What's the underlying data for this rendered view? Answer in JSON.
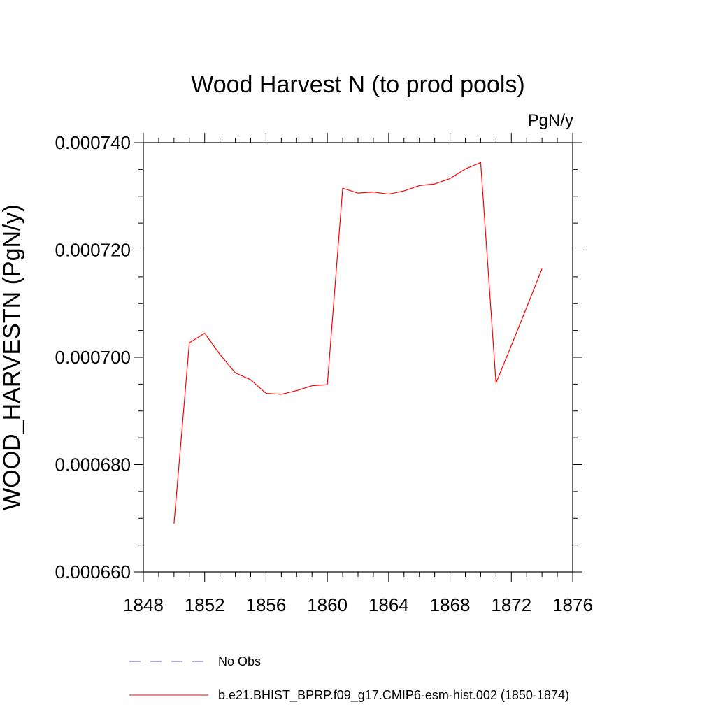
{
  "chart_data": {
    "type": "line",
    "title": "Wood Harvest N (to prod pools)",
    "units": "PgN/y",
    "ylabel": "WOOD_HARVESTN  (PgN/y)",
    "xlabel": "",
    "xlim": [
      1848,
      1876
    ],
    "ylim": [
      0.00066,
      0.00074
    ],
    "x_ticks": [
      1848,
      1852,
      1856,
      1860,
      1864,
      1868,
      1872,
      1876
    ],
    "x_tick_labels": [
      "1848",
      "1852",
      "1856",
      "1860",
      "1864",
      "1868",
      "1872",
      "1876"
    ],
    "y_ticks": [
      0.00066,
      0.00068,
      0.0007,
      0.00072,
      0.00074
    ],
    "y_tick_labels": [
      "0.000660",
      "0.000680",
      "0.000700",
      "0.000720",
      "0.000740"
    ],
    "x_minor_step": 1,
    "y_minor_step": 5e-06,
    "grid": false,
    "legend_position": "bottom",
    "series": [
      {
        "name": "b.e21.BHIST_BPRP.f09_g17.CMIP6-esm-hist.002 (1850-1874)",
        "color": "#ff0000",
        "style": "solid",
        "x": [
          1850,
          1851,
          1852,
          1853,
          1854,
          1855,
          1856,
          1857,
          1858,
          1859,
          1860,
          1861,
          1862,
          1863,
          1864,
          1865,
          1866,
          1867,
          1868,
          1869,
          1870,
          1871,
          1872,
          1873,
          1874
        ],
        "y": [
          0.000669,
          0.0007027,
          0.0007045,
          0.0007005,
          0.0006971,
          0.0006958,
          0.0006933,
          0.0006931,
          0.0006938,
          0.0006947,
          0.0006949,
          0.0007315,
          0.0007306,
          0.0007308,
          0.0007304,
          0.000731,
          0.000732,
          0.0007323,
          0.0007333,
          0.0007351,
          0.0007363,
          0.0006952,
          0.0007022,
          0.0007093,
          0.0007165
        ]
      }
    ],
    "legend": [
      {
        "label": "No Obs",
        "color": "#6a5acd",
        "style": "dashed"
      },
      {
        "label": "b.e21.BHIST_BPRP.f09_g17.CMIP6-esm-hist.002 (1850-1874)",
        "color": "#ff0000",
        "style": "solid"
      }
    ]
  }
}
